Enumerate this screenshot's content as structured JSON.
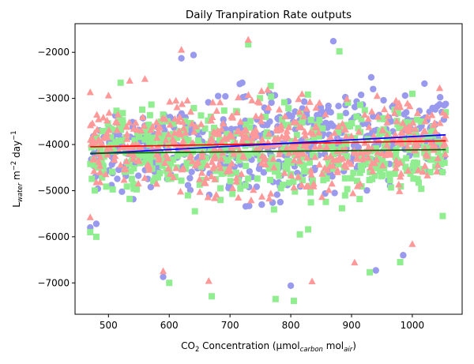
{
  "chart_data": {
    "type": "scatter",
    "title": "Daily Tranpiration Rate outputs",
    "xlabel": {
      "base": "CO",
      "sub1": "2",
      "mid": " Concentration (µmol",
      "sub2": "carbon",
      "mid2": " mol",
      "sub3": "air",
      "end": ")"
    },
    "ylabel": {
      "base": "L",
      "sub": "water",
      "mid": " m",
      "sup1": "−2",
      "mid2": " day",
      "sup2": "−1"
    },
    "xlim": [
      445,
      1082
    ],
    "ylim": [
      -7680,
      -1380
    ],
    "xticks": [
      500,
      600,
      700,
      800,
      900,
      1000
    ],
    "xtick_labels": [
      "500",
      "600",
      "700",
      "800",
      "900",
      "1000"
    ],
    "yticks": [
      -7000,
      -6000,
      -5000,
      -4000,
      -3000,
      -2000
    ],
    "ytick_labels": [
      "−7000",
      "−6000",
      "−5000",
      "−4000",
      "−3000",
      "−2000"
    ],
    "grid": false,
    "legend": "none",
    "x_range": [
      470,
      1055
    ],
    "series": [
      {
        "marker": "circle",
        "color": "#9999ee",
        "trend": {
          "color": "#0000ff",
          "x": [
            470,
            1055
          ],
          "y": [
            -4200,
            -3790
          ]
        },
        "extremes": [
          [
            870,
            -1760
          ],
          [
            620,
            -2130
          ],
          [
            640,
            -2060
          ],
          [
            1045,
            -3130
          ],
          [
            1055,
            -3120
          ],
          [
            1020,
            -2680
          ],
          [
            470,
            -5800
          ],
          [
            480,
            -5720
          ],
          [
            505,
            -4880
          ],
          [
            590,
            -6870
          ],
          [
            800,
            -7060
          ],
          [
            940,
            -6730
          ],
          [
            985,
            -6400
          ],
          [
            1050,
            -4600
          ]
        ]
      },
      {
        "marker": "square",
        "color": "#90ee90",
        "trend": {
          "color": "#006400",
          "x": [
            470,
            1055
          ],
          "y": [
            -4190,
            -4110
          ]
        },
        "extremes": [
          [
            730,
            -1830
          ],
          [
            520,
            -2660
          ],
          [
            880,
            -1980
          ],
          [
            1000,
            -2900
          ],
          [
            1055,
            -3300
          ],
          [
            470,
            -5900
          ],
          [
            480,
            -6000
          ],
          [
            670,
            -7290
          ],
          [
            775,
            -7350
          ],
          [
            805,
            -7390
          ],
          [
            600,
            -7000
          ],
          [
            930,
            -6770
          ],
          [
            980,
            -6550
          ],
          [
            1050,
            -5550
          ]
        ]
      },
      {
        "marker": "triangle",
        "color": "#ff9999",
        "trend": {
          "color": "#ff0000",
          "x": [
            470,
            1055
          ],
          "y": [
            -4050,
            -3920
          ]
        },
        "extremes": [
          [
            730,
            -1730
          ],
          [
            620,
            -1950
          ],
          [
            470,
            -2870
          ],
          [
            500,
            -2940
          ],
          [
            535,
            -2620
          ],
          [
            560,
            -2580
          ],
          [
            1045,
            -2780
          ],
          [
            1055,
            -3370
          ],
          [
            470,
            -5580
          ],
          [
            590,
            -6750
          ],
          [
            665,
            -6960
          ],
          [
            835,
            -6970
          ],
          [
            905,
            -6560
          ],
          [
            1000,
            -6160
          ]
        ]
      }
    ]
  }
}
